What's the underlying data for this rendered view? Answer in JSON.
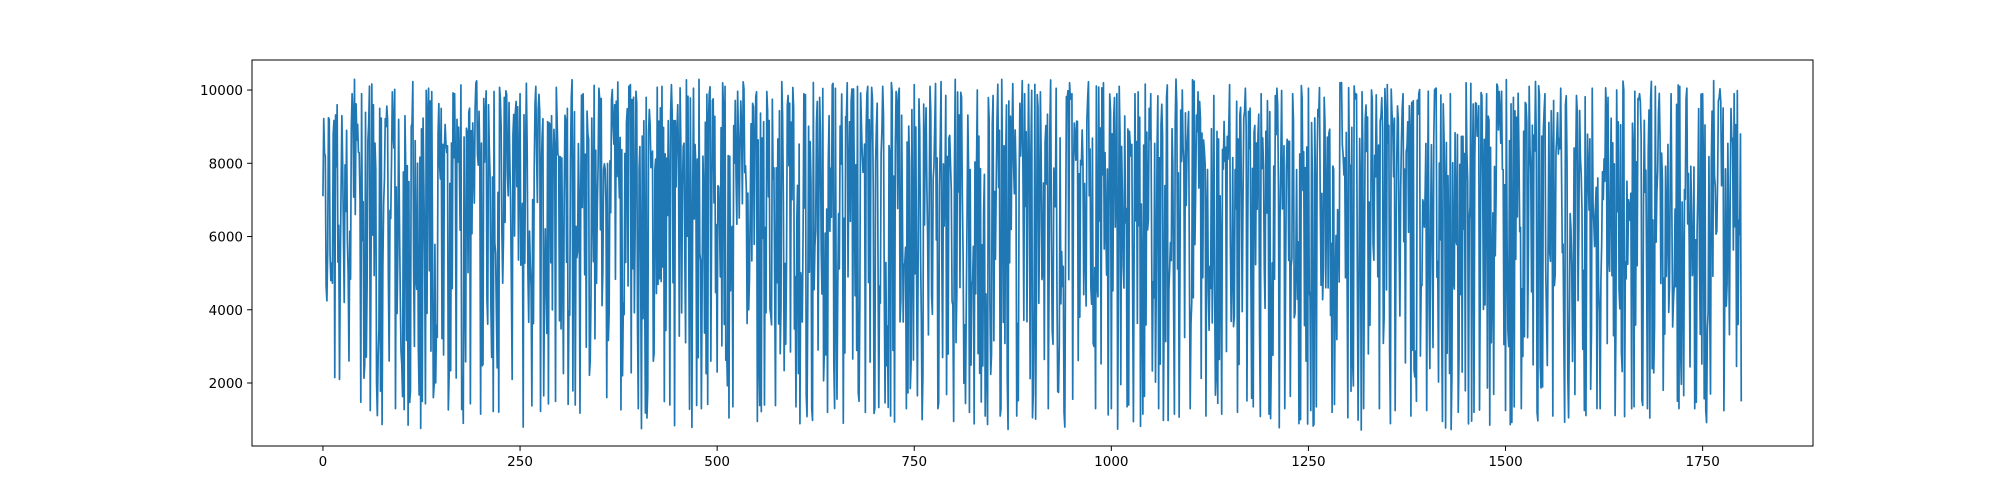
{
  "chart_data": {
    "type": "line",
    "title": "",
    "xlabel": "",
    "ylabel": "",
    "xlim": [
      -90,
      1890
    ],
    "ylim": [
      280,
      10820
    ],
    "grid": false,
    "x_ticks": [
      0,
      250,
      500,
      750,
      1000,
      1250,
      1500,
      1750
    ],
    "y_ticks": [
      2000,
      4000,
      6000,
      8000,
      10000
    ],
    "x_tick_labels": [
      "0",
      "250",
      "500",
      "750",
      "1000",
      "1250",
      "1500",
      "1750"
    ],
    "y_tick_labels": [
      "2000",
      "4000",
      "6000",
      "8000",
      "10000"
    ],
    "series": [
      {
        "color": "#1f77b4",
        "n_points": 1800,
        "x_start": 0,
        "x_step": 1,
        "y_min": 700,
        "y_max": 10300,
        "sampled_values": [
          [
            0,
            7100
          ],
          [
            3,
            8200
          ],
          [
            6,
            5600
          ],
          [
            8,
            9200
          ],
          [
            10,
            4800
          ],
          [
            13,
            8800
          ],
          [
            15,
            2150
          ],
          [
            18,
            9600
          ],
          [
            21,
            2100
          ],
          [
            24,
            9300
          ],
          [
            27,
            4200
          ],
          [
            30,
            8900
          ],
          [
            33,
            2600
          ],
          [
            37,
            9900
          ],
          [
            41,
            6600
          ],
          [
            45,
            8300
          ],
          [
            49,
            9900
          ],
          [
            53,
            2500
          ],
          [
            57,
            8600
          ],
          [
            60,
            1250
          ],
          [
            64,
            9600
          ],
          [
            68,
            2000
          ],
          [
            72,
            9500
          ],
          [
            76,
            5200
          ],
          [
            80,
            9000
          ],
          [
            84,
            2600
          ],
          [
            88,
            9950
          ],
          [
            92,
            1300
          ],
          [
            96,
            9200
          ],
          [
            100,
            2500
          ],
          [
            104,
            9300
          ],
          [
            108,
            850
          ],
          [
            112,
            9000
          ],
          [
            116,
            3000
          ],
          [
            120,
            8000
          ],
          [
            124,
            760
          ],
          [
            128,
            7400
          ],
          [
            132,
            3900
          ],
          [
            136,
            9700
          ],
          [
            140,
            1600
          ],
          [
            150,
            9500
          ],
          [
            160,
            2200
          ],
          [
            170,
            9200
          ],
          [
            180,
            4500
          ],
          [
            190,
            9100
          ],
          [
            195,
            10250
          ],
          [
            200,
            1150
          ],
          [
            210,
            9600
          ],
          [
            220,
            3900
          ],
          [
            230,
            9800
          ],
          [
            240,
            2100
          ],
          [
            250,
            9900
          ],
          [
            260,
            5000
          ],
          [
            270,
            10100
          ],
          [
            280,
            1650
          ],
          [
            290,
            9300
          ],
          [
            300,
            3700
          ],
          [
            310,
            9500
          ],
          [
            320,
            1400
          ],
          [
            330,
            9900
          ],
          [
            340,
            4400
          ],
          [
            350,
            10050
          ],
          [
            360,
            1600
          ],
          [
            370,
            9600
          ],
          [
            380,
            2200
          ],
          [
            390,
            10150
          ],
          [
            400,
            1300
          ],
          [
            410,
            9800
          ],
          [
            420,
            2800
          ],
          [
            430,
            10100
          ],
          [
            440,
            1400
          ],
          [
            450,
            9600
          ],
          [
            460,
            3100
          ],
          [
            470,
            10050
          ],
          [
            480,
            1300
          ],
          [
            490,
            9900
          ],
          [
            500,
            2300
          ],
          [
            510,
            10100
          ],
          [
            520,
            1350
          ],
          [
            530,
            9700
          ],
          [
            540,
            4000
          ],
          [
            550,
            9950
          ],
          [
            560,
            1400
          ],
          [
            570,
            9750
          ],
          [
            580,
            2800
          ],
          [
            590,
            9850
          ],
          [
            600,
            1350
          ],
          [
            610,
            9900
          ],
          [
            620,
            1300
          ],
          [
            630,
            9800
          ],
          [
            640,
            1200
          ],
          [
            650,
            10050
          ],
          [
            660,
            900
          ],
          [
            670,
            9700
          ],
          [
            680,
            1500
          ],
          [
            690,
            9900
          ],
          [
            700,
            1300
          ],
          [
            710,
            10100
          ],
          [
            720,
            1100
          ],
          [
            730,
            9900
          ],
          [
            740,
            1300
          ],
          [
            750,
            10150
          ],
          [
            760,
            1000
          ],
          [
            770,
            10100
          ],
          [
            780,
            1300
          ],
          [
            790,
            9850
          ],
          [
            800,
            950
          ],
          [
            810,
            9800
          ],
          [
            820,
            1200
          ],
          [
            830,
            10000
          ],
          [
            840,
            1100
          ],
          [
            850,
            9850
          ],
          [
            860,
            1300
          ],
          [
            870,
            9700
          ],
          [
            880,
            1100
          ],
          [
            890,
            9900
          ],
          [
            900,
            1050
          ],
          [
            910,
            9950
          ],
          [
            920,
            1300
          ],
          [
            930,
            10050
          ],
          [
            940,
            1200
          ],
          [
            950,
            9900
          ],
          [
            960,
            3800
          ],
          [
            970,
            9800
          ],
          [
            980,
            1300
          ],
          [
            990,
            10200
          ],
          [
            1000,
            1300
          ],
          [
            1010,
            10100
          ],
          [
            1020,
            1350
          ],
          [
            1030,
            9900
          ],
          [
            1040,
            1150
          ],
          [
            1050,
            9900
          ],
          [
            1060,
            1300
          ],
          [
            1070,
            9800
          ],
          [
            1080,
            1150
          ],
          [
            1090,
            10000
          ],
          [
            1100,
            1300
          ],
          [
            1110,
            9950
          ],
          [
            1120,
            1100
          ],
          [
            1130,
            9850
          ],
          [
            1140,
            1150
          ],
          [
            1150,
            10150
          ],
          [
            1160,
            1200
          ],
          [
            1170,
            10050
          ],
          [
            1180,
            1350
          ],
          [
            1190,
            9900
          ],
          [
            1200,
            1150
          ],
          [
            1210,
            10050
          ],
          [
            1220,
            1300
          ],
          [
            1230,
            9900
          ],
          [
            1240,
            1000
          ],
          [
            1250,
            10050
          ],
          [
            1260,
            1350
          ],
          [
            1270,
            9800
          ],
          [
            1280,
            1200
          ],
          [
            1290,
            10200
          ],
          [
            1300,
            1050
          ],
          [
            1310,
            9900
          ],
          [
            1320,
            1300
          ],
          [
            1330,
            10000
          ],
          [
            1340,
            1300
          ],
          [
            1350,
            10150
          ],
          [
            1360,
            1250
          ],
          [
            1370,
            9900
          ],
          [
            1380,
            1100
          ],
          [
            1390,
            9900
          ],
          [
            1400,
            1250
          ],
          [
            1410,
            10000
          ],
          [
            1420,
            950
          ],
          [
            1430,
            9900
          ],
          [
            1440,
            1200
          ],
          [
            1450,
            10200
          ],
          [
            1460,
            1200
          ],
          [
            1470,
            9850
          ],
          [
            1480,
            850
          ],
          [
            1490,
            10100
          ],
          [
            1500,
            1250
          ],
          [
            1510,
            9800
          ],
          [
            1520,
            1300
          ],
          [
            1530,
            10100
          ],
          [
            1540,
            1200
          ],
          [
            1550,
            9900
          ],
          [
            1560,
            1100
          ],
          [
            1570,
            10050
          ],
          [
            1580,
            1050
          ],
          [
            1590,
            9850
          ],
          [
            1600,
            1250
          ],
          [
            1610,
            10050
          ],
          [
            1620,
            1300
          ],
          [
            1630,
            9800
          ],
          [
            1640,
            3400
          ],
          [
            1650,
            10000
          ],
          [
            1660,
            1300
          ],
          [
            1670,
            9900
          ],
          [
            1680,
            1300
          ],
          [
            1690,
            10100
          ],
          [
            1700,
            1800
          ],
          [
            1710,
            9900
          ],
          [
            1720,
            1300
          ],
          [
            1730,
            10050
          ],
          [
            1740,
            1300
          ],
          [
            1750,
            9900
          ],
          [
            1760,
            1700
          ],
          [
            1770,
            9700
          ],
          [
            1780,
            4100
          ],
          [
            1790,
            9900
          ],
          [
            1795,
            3600
          ],
          [
            1798,
            8800
          ],
          [
            1799,
            1500
          ]
        ]
      }
    ]
  }
}
